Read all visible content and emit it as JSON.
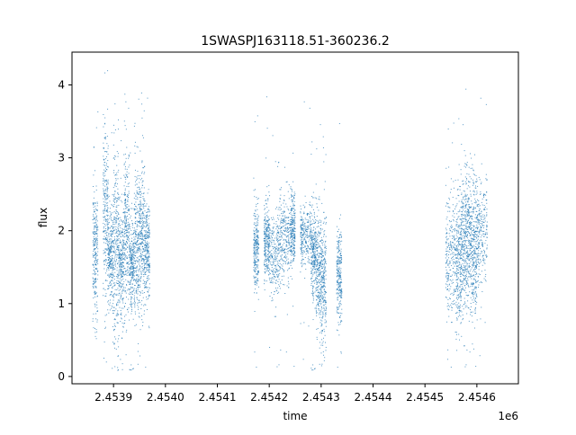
{
  "chart_data": {
    "type": "scatter",
    "title": "1SWASPJ163118.51-360236.2",
    "xlabel": "time",
    "ylabel": "flux",
    "x_offset_label": "1e6",
    "xlim": [
      2.45382,
      2.45468
    ],
    "ylim": [
      -0.1,
      4.45
    ],
    "x_ticks": [
      2.4539,
      2.454,
      2.4541,
      2.4542,
      2.4543,
      2.4544,
      2.4545,
      2.4546
    ],
    "x_tick_labels": [
      "2.4539",
      "2.4540",
      "2.4541",
      "2.4542",
      "2.4543",
      "2.4544",
      "2.4545",
      "2.4546"
    ],
    "y_ticks": [
      0,
      1,
      2,
      3,
      4
    ],
    "y_tick_labels": [
      "0",
      "1",
      "2",
      "3",
      "4"
    ],
    "grid": false,
    "legend": "none",
    "marker_color": "#1f77b4",
    "series": [
      {
        "observation_groups": [
          {
            "x_start": 2.45386,
            "x_end": 2.45387,
            "center": 1.7,
            "spread": 0.45
          },
          {
            "x_start": 2.45388,
            "x_end": 2.45389,
            "center": 2.2,
            "spread": 0.6
          },
          {
            "x_start": 2.45389,
            "x_end": 2.4539,
            "center": 1.6,
            "spread": 0.35
          },
          {
            "x_start": 2.4539,
            "x_end": 2.45391,
            "center": 1.85,
            "spread": 0.7
          },
          {
            "x_start": 2.45391,
            "x_end": 2.45392,
            "center": 1.55,
            "spread": 0.35
          },
          {
            "x_start": 2.45392,
            "x_end": 2.45393,
            "center": 1.95,
            "spread": 0.55
          },
          {
            "x_start": 2.45393,
            "x_end": 2.45394,
            "center": 1.55,
            "spread": 0.3
          },
          {
            "x_start": 2.45394,
            "x_end": 2.45395,
            "center": 1.8,
            "spread": 0.55
          },
          {
            "x_start": 2.45395,
            "x_end": 2.45396,
            "center": 1.9,
            "spread": 0.5
          },
          {
            "x_start": 2.45396,
            "x_end": 2.45397,
            "center": 1.75,
            "spread": 0.35
          },
          {
            "x_start": 2.45417,
            "x_end": 2.45418,
            "center": 1.75,
            "spread": 0.3
          },
          {
            "x_start": 2.45419,
            "x_end": 2.4542,
            "center": 1.85,
            "spread": 0.25
          },
          {
            "x_start": 2.4542,
            "x_end": 2.45422,
            "center": 1.65,
            "spread": 0.3
          },
          {
            "x_start": 2.45422,
            "x_end": 2.45424,
            "center": 1.9,
            "spread": 0.3
          },
          {
            "x_start": 2.45424,
            "x_end": 2.45425,
            "center": 2.0,
            "spread": 0.25
          },
          {
            "x_start": 2.45426,
            "x_end": 2.45428,
            "center": 1.95,
            "spread": 0.2
          },
          {
            "x_start": 2.45428,
            "x_end": 2.45429,
            "center": 1.7,
            "spread": 0.3
          },
          {
            "x_start": 2.45429,
            "x_end": 2.4543,
            "center": 1.45,
            "spread": 0.4
          },
          {
            "x_start": 2.4543,
            "x_end": 2.45431,
            "center": 1.3,
            "spread": 0.45
          },
          {
            "x_start": 2.45433,
            "x_end": 2.45434,
            "center": 1.4,
            "spread": 0.35
          },
          {
            "x_start": 2.45454,
            "x_end": 2.45456,
            "center": 1.65,
            "spread": 0.45
          },
          {
            "x_start": 2.45456,
            "x_end": 2.45457,
            "center": 1.55,
            "spread": 0.45
          },
          {
            "x_start": 2.45457,
            "x_end": 2.45458,
            "center": 1.8,
            "spread": 0.5
          },
          {
            "x_start": 2.45458,
            "x_end": 2.45459,
            "center": 1.9,
            "spread": 0.45
          },
          {
            "x_start": 2.45459,
            "x_end": 2.4546,
            "center": 1.7,
            "spread": 0.5
          },
          {
            "x_start": 2.4546,
            "x_end": 2.45462,
            "center": 2.0,
            "spread": 0.35
          }
        ]
      }
    ]
  }
}
